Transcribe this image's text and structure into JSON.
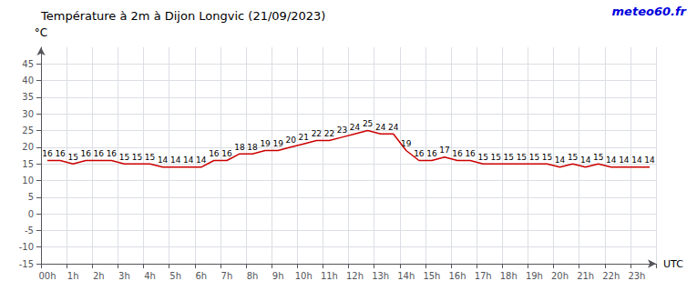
{
  "chart_data": {
    "type": "line",
    "title": "Température à 2m à Dijon Longvic (21/09/2023)",
    "ylabel": "°C",
    "xlabel": "UTC",
    "annotations": [
      {
        "text": "meteo60.fr",
        "color": "#0000dd"
      }
    ],
    "categories": [
      "00h",
      null,
      "1h",
      null,
      "2h",
      null,
      "3h",
      null,
      "4h",
      null,
      "5h",
      null,
      "6h",
      null,
      "7h",
      null,
      "8h",
      null,
      "9h",
      null,
      "10h",
      null,
      "11h",
      null,
      "12h",
      null,
      "13h",
      null,
      "14h",
      null,
      "15h",
      null,
      "16h",
      null,
      "17h",
      null,
      "18h",
      null,
      "19h",
      null,
      "20h",
      null,
      "21h",
      null,
      "22h",
      null,
      "23h",
      null
    ],
    "values": [
      16,
      16,
      15,
      16,
      16,
      16,
      15,
      15,
      15,
      14,
      14,
      14,
      14,
      16,
      16,
      18,
      18,
      19,
      19,
      20,
      21,
      22,
      22,
      23,
      24,
      25,
      24,
      24,
      19,
      16,
      16,
      17,
      16,
      16,
      15,
      15,
      15,
      15,
      15,
      15,
      14,
      15,
      14,
      15,
      14,
      14,
      14,
      14
    ],
    "color": "#cc0000",
    "ylim": [
      -15,
      50
    ],
    "yticks": [
      -15,
      -10,
      -5,
      0,
      5,
      10,
      15,
      20,
      25,
      30,
      35,
      40,
      45
    ],
    "grid": true,
    "data_labels": true
  }
}
